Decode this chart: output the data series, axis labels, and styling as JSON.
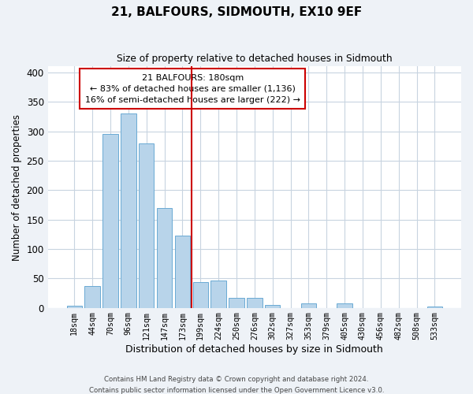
{
  "title": "21, BALFOURS, SIDMOUTH, EX10 9EF",
  "subtitle": "Size of property relative to detached houses in Sidmouth",
  "xlabel": "Distribution of detached houses by size in Sidmouth",
  "ylabel": "Number of detached properties",
  "footer_line1": "Contains HM Land Registry data © Crown copyright and database right 2024.",
  "footer_line2": "Contains public sector information licensed under the Open Government Licence v3.0.",
  "bar_labels": [
    "18sqm",
    "44sqm",
    "70sqm",
    "96sqm",
    "121sqm",
    "147sqm",
    "173sqm",
    "199sqm",
    "224sqm",
    "250sqm",
    "276sqm",
    "302sqm",
    "327sqm",
    "353sqm",
    "379sqm",
    "405sqm",
    "430sqm",
    "456sqm",
    "482sqm",
    "508sqm",
    "533sqm"
  ],
  "bar_values": [
    4,
    37,
    296,
    330,
    280,
    170,
    123,
    43,
    46,
    17,
    17,
    5,
    0,
    8,
    0,
    7,
    0,
    0,
    0,
    0,
    2
  ],
  "bar_color": "#b8d4ea",
  "bar_edge_color": "#6aaad4",
  "property_line_color": "#cc0000",
  "annotation_line1": "21 BALFOURS: 180sqm",
  "annotation_line2": "← 83% of detached houses are smaller (1,136)",
  "annotation_line3": "16% of semi-detached houses are larger (222) →",
  "annotation_box_color": "#ffffff",
  "annotation_box_edge_color": "#cc0000",
  "ylim": [
    0,
    410
  ],
  "background_color": "#eef2f7",
  "plot_background_color": "#ffffff",
  "grid_color": "#c8d4e0"
}
